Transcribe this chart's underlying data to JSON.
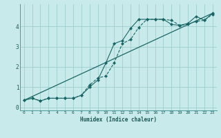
{
  "xlabel": "Humidex (Indice chaleur)",
  "bg_color": "#c8eaea",
  "grid_color": "#9ecece",
  "line_color": "#1a6666",
  "xlim": [
    -0.5,
    23.5
  ],
  "ylim": [
    -0.15,
    5.1
  ],
  "x_ticks": [
    0,
    1,
    2,
    3,
    4,
    5,
    6,
    7,
    8,
    9,
    10,
    11,
    12,
    13,
    14,
    15,
    16,
    17,
    18,
    19,
    20,
    21,
    22,
    23
  ],
  "y_ticks": [
    0,
    1,
    2,
    3,
    4
  ],
  "series1_x": [
    0,
    1,
    2,
    3,
    4,
    5,
    6,
    7,
    8,
    9,
    10,
    11,
    12,
    13,
    14,
    15,
    16,
    17,
    18,
    19,
    20,
    21,
    22,
    23
  ],
  "series1_y": [
    0.35,
    0.45,
    0.32,
    0.45,
    0.45,
    0.45,
    0.45,
    0.6,
    1.1,
    1.45,
    1.55,
    2.2,
    3.15,
    3.35,
    3.95,
    4.35,
    4.35,
    4.35,
    4.3,
    4.05,
    4.1,
    4.25,
    4.3,
    4.6
  ],
  "series2_x": [
    0,
    1,
    2,
    3,
    4,
    5,
    6,
    7,
    8,
    9,
    10,
    11,
    12,
    13,
    14,
    15,
    16,
    17,
    18,
    19,
    20,
    21,
    22,
    23
  ],
  "series2_y": [
    0.35,
    0.45,
    0.32,
    0.45,
    0.45,
    0.45,
    0.45,
    0.6,
    1.0,
    1.35,
    2.2,
    3.15,
    3.3,
    3.9,
    4.35,
    4.35,
    4.35,
    4.35,
    4.1,
    4.05,
    4.15,
    4.5,
    4.3,
    4.65
  ],
  "series3_x": [
    0,
    23
  ],
  "series3_y": [
    0.35,
    4.65
  ]
}
